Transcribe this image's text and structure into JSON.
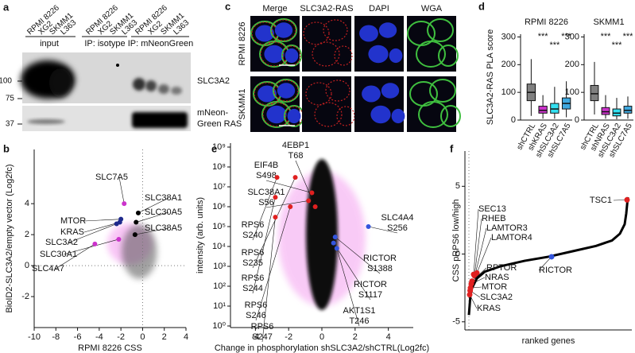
{
  "panel_labels": [
    "a",
    "b",
    "c",
    "d",
    "e",
    "f"
  ],
  "blot": {
    "lanes": [
      "RPMI 8226",
      "XG2",
      "SKMM1",
      "L363",
      "RPMI 8226",
      "XG2",
      "SKMM1",
      "L363",
      "RPMI 8226",
      "XG2",
      "SKMM1",
      "L363"
    ],
    "groups": [
      "input",
      "IP: isotype",
      "IP: mNeonGreen"
    ],
    "markers": [
      "100",
      "75",
      "37"
    ],
    "bands": [
      [
        "SLC3A2"
      ],
      [
        "mNeon-",
        "Green RAS"
      ]
    ]
  },
  "microscopy": {
    "columns": [
      "Merge",
      "SLC3A2-RAS",
      "DAPI",
      "WGA"
    ],
    "rows": [
      "RPMI 8226",
      "SKMM1"
    ]
  },
  "chart_data": [
    {
      "type": "box",
      "title": "RPMI 8226",
      "ylabel": "SLC3A2-RAS PLA score",
      "categories": [
        "shCTRL",
        "shKRAS",
        "shSLC3A2",
        "shSLC7A5"
      ],
      "colors": [
        "#808080",
        "#cc33cc",
        "#33e0f0",
        "#3fa9e0"
      ],
      "boxes": [
        {
          "whislo": 15,
          "q1": 70,
          "med": 100,
          "q3": 130,
          "whishi": 220
        },
        {
          "whislo": 5,
          "q1": 25,
          "med": 35,
          "q3": 50,
          "whishi": 90
        },
        {
          "whislo": 5,
          "q1": 25,
          "med": 40,
          "q3": 60,
          "whishi": 120
        },
        {
          "whislo": 10,
          "q1": 40,
          "med": 60,
          "q3": 80,
          "whishi": 140
        }
      ],
      "annotations": [
        {
          "category": 1,
          "text": "***"
        },
        {
          "category": 2,
          "text": "***"
        },
        {
          "category": 3,
          "text": "***"
        }
      ],
      "ylim": [
        0,
        310
      ],
      "yticks": [
        0,
        100,
        200,
        300
      ]
    },
    {
      "type": "box",
      "title": "SKMM1",
      "categories": [
        "shCTRL",
        "shNRAS",
        "shSLC3A2",
        "shSLC7A5"
      ],
      "colors": [
        "#808080",
        "#cc33cc",
        "#33e0f0",
        "#3fa9e0"
      ],
      "boxes": [
        {
          "whislo": 20,
          "q1": 70,
          "med": 95,
          "q3": 125,
          "whishi": 210
        },
        {
          "whislo": 5,
          "q1": 20,
          "med": 30,
          "q3": 45,
          "whishi": 90
        },
        {
          "whislo": 3,
          "q1": 15,
          "med": 25,
          "q3": 40,
          "whishi": 80
        },
        {
          "whislo": 5,
          "q1": 25,
          "med": 35,
          "q3": 50,
          "whishi": 85
        }
      ],
      "annotations": [
        {
          "category": 1,
          "text": "***"
        },
        {
          "category": 2,
          "text": "***"
        },
        {
          "category": 3,
          "text": "***"
        }
      ],
      "ylim": [
        0,
        310
      ],
      "yticks": [
        0,
        100,
        200,
        300
      ]
    },
    {
      "type": "scatter",
      "xlabel": "RPMI 8226 CSS",
      "ylabel": "BioID2-SLC3A2/empty vector (Log2fc)",
      "xlim": [
        -10,
        4
      ],
      "xticks": [
        -10,
        -8,
        -6,
        -4,
        -2,
        0,
        2,
        4
      ],
      "ylim": [
        -4,
        7.5
      ],
      "yticks": [
        -2,
        0,
        2,
        4
      ],
      "points": [
        {
          "label": "SLC7A5",
          "x": -1.7,
          "y": 4.0,
          "color": "#cc33cc"
        },
        {
          "label": "SLC38A1",
          "x": -0.4,
          "y": 3.4,
          "color": "#000000"
        },
        {
          "label": "MTOR",
          "x": -2.0,
          "y": 3.0,
          "color": "#1f2a8c"
        },
        {
          "label": "SLC30A5",
          "x": -0.6,
          "y": 2.8,
          "color": "#000000"
        },
        {
          "label": "KRAS",
          "x": -2.1,
          "y": 2.8,
          "color": "#1f2a8c"
        },
        {
          "label": "SLC3A2",
          "x": -2.4,
          "y": 2.7,
          "color": "#1f2a8c"
        },
        {
          "label": "SLC38A5",
          "x": -0.7,
          "y": 2.0,
          "color": "#000000"
        },
        {
          "label": "SLC30A1",
          "x": -2.2,
          "y": 1.7,
          "color": "#cc33cc"
        },
        {
          "label": "SLC4A7",
          "x": -4.4,
          "y": 1.4,
          "color": "#cc33cc"
        }
      ]
    },
    {
      "type": "scatter",
      "log": true,
      "xlabel": "Change in phosphorylation shSLC3A2/shCTRL(Log2fc)",
      "ylabel": "intensity (arb. units)",
      "xlim": [
        -5.5,
        5.5
      ],
      "xticks": [
        -4,
        -2,
        0,
        2,
        4
      ],
      "ylim": [
        1,
        1000000000
      ],
      "yticks": [
        {
          "value": 1,
          "label": "10⁰"
        },
        {
          "value": 10,
          "label": "10¹"
        },
        {
          "value": 100,
          "label": "10²"
        },
        {
          "value": 1000,
          "label": "10³"
        },
        {
          "value": 10000,
          "label": "10⁴"
        },
        {
          "value": 100000,
          "label": "10⁵"
        },
        {
          "value": 1000000,
          "label": "10⁶"
        },
        {
          "value": 10000000,
          "label": "10⁷"
        },
        {
          "value": 100000000,
          "label": "10⁸"
        },
        {
          "value": 1000000000,
          "label": "10⁹"
        }
      ],
      "points": [
        {
          "name": "EIF4B",
          "site": "S498",
          "x": -0.6,
          "y": 5000000,
          "color": "#e02020"
        },
        {
          "name": "4EBP1",
          "site": "T68",
          "x": -0.4,
          "y": 1000000,
          "color": "#e02020"
        },
        {
          "name": "SLC38A1",
          "site": "S56",
          "x": -0.8,
          "y": 2000000,
          "color": "#e02020"
        },
        {
          "name": "RPS6",
          "site": "S240",
          "x": -2.7,
          "y": 30000000,
          "color": "#e02020"
        },
        {
          "name": "RPS6",
          "site": "S235",
          "x": -1.6,
          "y": 30000000,
          "color": "#e02020"
        },
        {
          "name": "RPS6",
          "site": "S244",
          "x": -2.8,
          "y": 3000000,
          "color": "#e02020"
        },
        {
          "name": "RPS6",
          "site": "S246",
          "x": -1.9,
          "y": 1000000,
          "color": "#e02020"
        },
        {
          "name": "RPS6",
          "site": "S247",
          "x": -2.8,
          "y": 300000,
          "color": "#e02020"
        },
        {
          "name": "SLC4A4",
          "site": "S256",
          "x": 2.8,
          "y": 100000,
          "color": "#3355dd"
        },
        {
          "name": "RICTOR",
          "site": "S1388",
          "x": 0.8,
          "y": 30000,
          "color": "#3355dd"
        },
        {
          "name": "RICTOR",
          "site": "S1117",
          "x": 0.7,
          "y": 15000,
          "color": "#3355dd"
        },
        {
          "name": "AKT1S1",
          "site": "T246",
          "x": 0.9,
          "y": 8000,
          "color": "#3355dd"
        }
      ]
    },
    {
      "type": "line",
      "xlabel": "ranked genes",
      "ylabel": "CSS pRPS6 low/high",
      "xlim": [
        0,
        100
      ],
      "ylim": [
        -5.6,
        7.6
      ],
      "yticks": [
        -5,
        0,
        5
      ],
      "color": "#000000",
      "x": [
        0,
        1,
        2,
        5,
        10,
        20,
        35,
        50,
        65,
        80,
        90,
        95,
        98,
        99,
        100
      ],
      "values": [
        -4.5,
        -3.0,
        -2.5,
        -1.8,
        -1.3,
        -0.9,
        -0.5,
        -0.2,
        0.2,
        0.6,
        1.0,
        1.5,
        2.2,
        3.0,
        4.2
      ],
      "highlights": [
        {
          "label": "TSC1",
          "x": 99.5,
          "y": 4.0,
          "color": "#e02020"
        },
        {
          "label": "SEC13",
          "x": 3,
          "y": -1.5,
          "color": "#e02020"
        },
        {
          "label": "RHEB",
          "x": 3.5,
          "y": -1.6,
          "color": "#e02020"
        },
        {
          "label": "LAMTOR3",
          "x": 4,
          "y": -1.5,
          "color": "#e02020"
        },
        {
          "label": "LAMTOR4",
          "x": 5,
          "y": -1.4,
          "color": "#e02020"
        },
        {
          "label": "RICTOR",
          "x": 52,
          "y": -0.2,
          "color": "#3355dd"
        },
        {
          "label": "RPTOR",
          "x": 2,
          "y": -2.0,
          "color": "#e02020"
        },
        {
          "label": "NRAS",
          "x": 1.5,
          "y": -2.2,
          "color": "#e02020"
        },
        {
          "label": "MTOR",
          "x": 1,
          "y": -2.5,
          "color": "#e02020"
        },
        {
          "label": "SLC3A2",
          "x": 0.8,
          "y": -2.7,
          "color": "#e02020"
        },
        {
          "label": "KRAS",
          "x": 0.5,
          "y": -3.0,
          "color": "#e02020"
        }
      ]
    }
  ]
}
